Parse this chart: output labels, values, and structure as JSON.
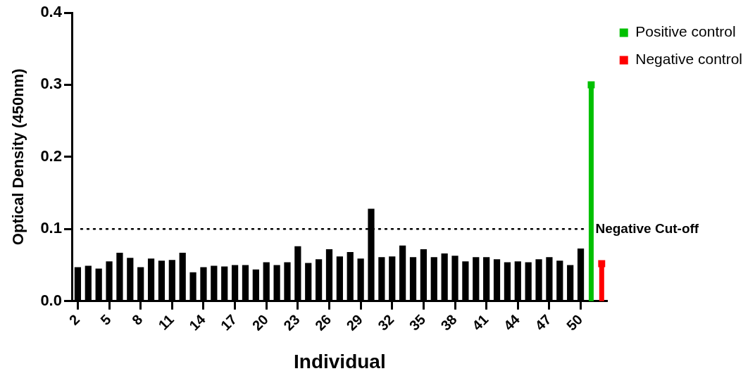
{
  "chart_data": {
    "type": "bar",
    "xlabel": "Individual",
    "ylabel": "Optical Density (450nm)",
    "categories": [
      "2",
      null,
      null,
      "5",
      null,
      null,
      "8",
      null,
      null,
      "11",
      null,
      null,
      "14",
      null,
      null,
      "17",
      null,
      null,
      "20",
      null,
      null,
      "23",
      null,
      null,
      "26",
      null,
      null,
      "29",
      null,
      null,
      "32",
      null,
      null,
      "35",
      null,
      null,
      "38",
      null,
      null,
      "41",
      null,
      null,
      "44",
      null,
      null,
      "47",
      null,
      null,
      "50",
      null,
      null
    ],
    "series": [
      {
        "color": "#000000",
        "values": [
          0.047,
          0.049,
          0.045,
          0.055,
          0.067,
          0.06,
          0.047,
          0.059,
          0.056,
          0.057,
          0.067,
          0.04,
          0.047,
          0.049,
          0.048,
          0.05,
          0.05,
          0.044,
          0.054,
          0.05,
          0.054,
          0.076,
          0.053,
          0.058,
          0.072,
          0.062,
          0.068,
          0.059,
          0.128,
          0.061,
          0.062,
          0.077,
          0.061,
          0.072,
          0.061,
          0.066,
          0.063,
          0.055,
          0.061,
          0.061,
          0.058,
          0.054,
          0.055,
          0.054,
          0.058,
          0.061,
          0.056,
          0.05,
          0.073,
          null,
          null
        ]
      },
      {
        "name": "Positive control",
        "type": "lollipop",
        "color": "#00c000",
        "marker": "square",
        "values": [
          null,
          null,
          null,
          null,
          null,
          null,
          null,
          null,
          null,
          null,
          null,
          null,
          null,
          null,
          null,
          null,
          null,
          null,
          null,
          null,
          null,
          null,
          null,
          null,
          null,
          null,
          null,
          null,
          null,
          null,
          null,
          null,
          null,
          null,
          null,
          null,
          null,
          null,
          null,
          null,
          null,
          null,
          null,
          null,
          null,
          null,
          null,
          null,
          null,
          0.3,
          null
        ]
      },
      {
        "name": "Negative control",
        "type": "lollipop",
        "color": "#ff0000",
        "marker": "square",
        "values": [
          null,
          null,
          null,
          null,
          null,
          null,
          null,
          null,
          null,
          null,
          null,
          null,
          null,
          null,
          null,
          null,
          null,
          null,
          null,
          null,
          null,
          null,
          null,
          null,
          null,
          null,
          null,
          null,
          null,
          null,
          null,
          null,
          null,
          null,
          null,
          null,
          null,
          null,
          null,
          null,
          null,
          null,
          null,
          null,
          null,
          null,
          null,
          null,
          null,
          null,
          0.052
        ]
      }
    ],
    "ylim": [
      0,
      0.4
    ],
    "yticks": [
      {
        "value": 0,
        "label": "0.0"
      },
      {
        "value": 0.1,
        "label": "0.1"
      },
      {
        "value": 0.2,
        "label": "0.2"
      },
      {
        "value": 0.3,
        "label": "0.3"
      },
      {
        "value": 0.4,
        "label": "0.4"
      }
    ],
    "ref_lines": [
      {
        "axis": "y",
        "value": 0.1,
        "label": "Negative Cut-off",
        "line_style": "dotted"
      }
    ],
    "grid": false,
    "legend": "top right"
  }
}
